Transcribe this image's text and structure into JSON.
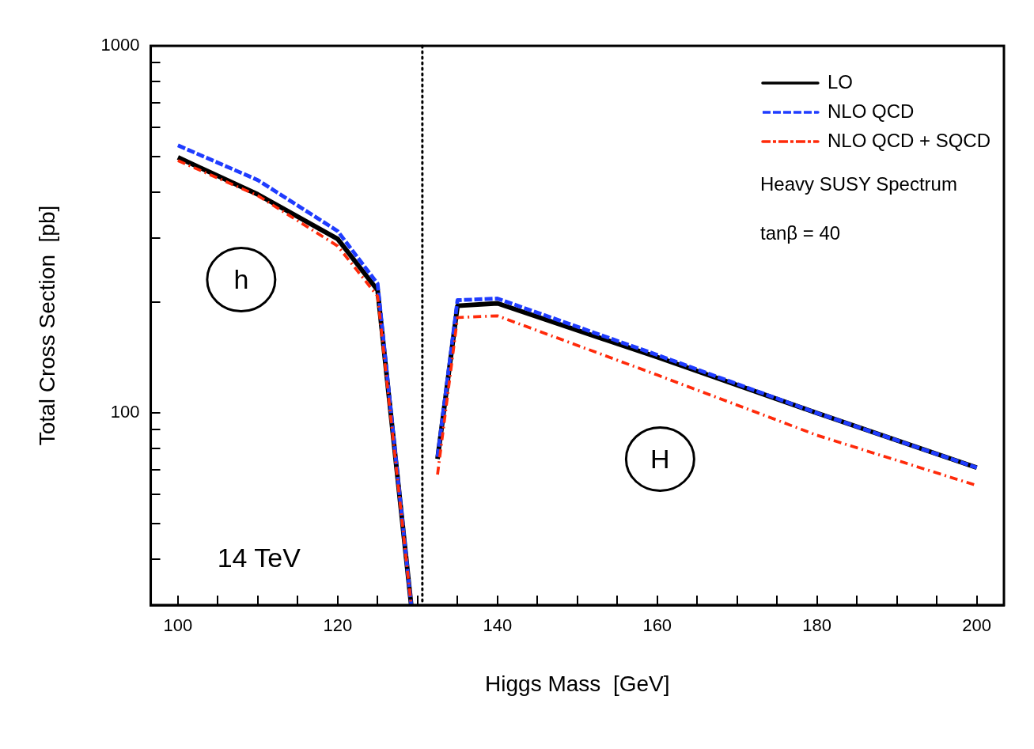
{
  "chart_data": {
    "type": "line",
    "xlabel": "Higgs Mass  [GeV]",
    "ylabel": "Total Cross Section  [pb]",
    "log": "y",
    "xlim": [
      96.6,
      203.4
    ],
    "ylim": [
      30,
      1000
    ],
    "xticks": [
      100,
      {
        "value": 105,
        "label": null
      },
      {
        "value": 110,
        "label": null
      },
      {
        "value": 115,
        "label": null
      },
      120,
      {
        "value": 125,
        "label": null
      },
      {
        "value": 130,
        "label": null
      },
      {
        "value": 135,
        "label": null
      },
      140,
      {
        "value": 145,
        "label": null
      },
      {
        "value": 150,
        "label": null
      },
      {
        "value": 155,
        "label": null
      },
      160,
      {
        "value": 165,
        "label": null
      },
      {
        "value": 170,
        "label": null
      },
      {
        "value": 175,
        "label": null
      },
      180,
      {
        "value": 185,
        "label": null
      },
      {
        "value": 190,
        "label": null
      },
      {
        "value": 195,
        "label": null
      },
      200
    ],
    "yticks": [
      {
        "value": 40,
        "label": null
      },
      {
        "value": 50,
        "label": null
      },
      {
        "value": 60,
        "label": null
      },
      {
        "value": 70,
        "label": null
      },
      {
        "value": 80,
        "label": null
      },
      {
        "value": 90,
        "label": null
      },
      100,
      {
        "value": 200,
        "label": null
      },
      {
        "value": 300,
        "label": null
      },
      {
        "value": 400,
        "label": null
      },
      {
        "value": 500,
        "label": null
      },
      {
        "value": 600,
        "label": null
      },
      {
        "value": 700,
        "label": null
      },
      {
        "value": 800,
        "label": null
      },
      {
        "value": 900,
        "label": null
      },
      1000
    ],
    "x": [
      100,
      110,
      120,
      125,
      129.2,
      null,
      132.5,
      135,
      140,
      160,
      180,
      200
    ],
    "series": [
      {
        "name": "LO",
        "color": "#000000",
        "line_style": "solid",
        "values": [
          497,
          394,
          298,
          216,
          30,
          null,
          75,
          196,
          199,
          142,
          100,
          71
        ]
      },
      {
        "name": "NLO QCD",
        "color": "#1f3cff",
        "line_style": "dashed",
        "values": [
          536,
          431,
          313,
          225,
          30,
          null,
          76,
          203,
          205,
          144,
          100,
          71
        ]
      },
      {
        "name": "NLO QCD + SQCD",
        "color": "#ff2a0a",
        "line_style": "dashdot",
        "values": [
          487,
          391,
          285,
          208,
          30,
          null,
          68,
          182,
          184,
          127,
          87,
          63.5
        ]
      }
    ],
    "ref_lines": [
      {
        "axis": "x",
        "value": 130.6,
        "color": "#000000",
        "line_style": "dotted"
      }
    ],
    "annotations": [
      "h",
      "H",
      "Heavy SUSY Spectrum",
      "tanβ = 40",
      "14 TeV"
    ],
    "legend": "top right",
    "marker": "none",
    "grid": false
  }
}
